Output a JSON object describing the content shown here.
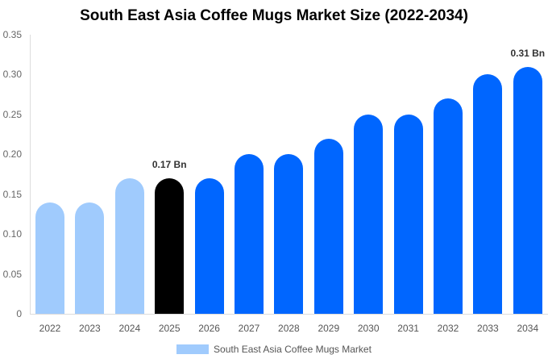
{
  "chart_data": {
    "type": "bar",
    "title": "South East Asia Coffee Mugs Market Size (2022-2034)",
    "xlabel": "",
    "ylabel": "",
    "ylim": [
      0,
      0.35
    ],
    "yticks": [
      "0",
      "0.05",
      "0.10",
      "0.15",
      "0.20",
      "0.25",
      "0.30",
      "0.35"
    ],
    "categories": [
      "2022",
      "2023",
      "2024",
      "2025",
      "2026",
      "2027",
      "2028",
      "2029",
      "2030",
      "2031",
      "2032",
      "2033",
      "2034"
    ],
    "series": [
      {
        "name": "South East Asia Coffee Mugs Market",
        "values": [
          0.14,
          0.14,
          0.17,
          0.17,
          0.17,
          0.2,
          0.2,
          0.22,
          0.25,
          0.25,
          0.27,
          0.3,
          0.31
        ]
      }
    ],
    "bar_colors": [
      "#a0cbfd",
      "#a0cbfd",
      "#a0cbfd",
      "#000000",
      "#0066ff",
      "#0066ff",
      "#0066ff",
      "#0066ff",
      "#0066ff",
      "#0066ff",
      "#0066ff",
      "#0066ff",
      "#0066ff"
    ],
    "annotations": [
      {
        "index": 3,
        "text": "0.17 Bn"
      },
      {
        "index": 12,
        "text": "0.31 Bn"
      }
    ],
    "legend": {
      "position": "bottom",
      "label": "South East Asia Coffee Mugs Market",
      "color": "#a0cbfd"
    },
    "grid": false
  }
}
